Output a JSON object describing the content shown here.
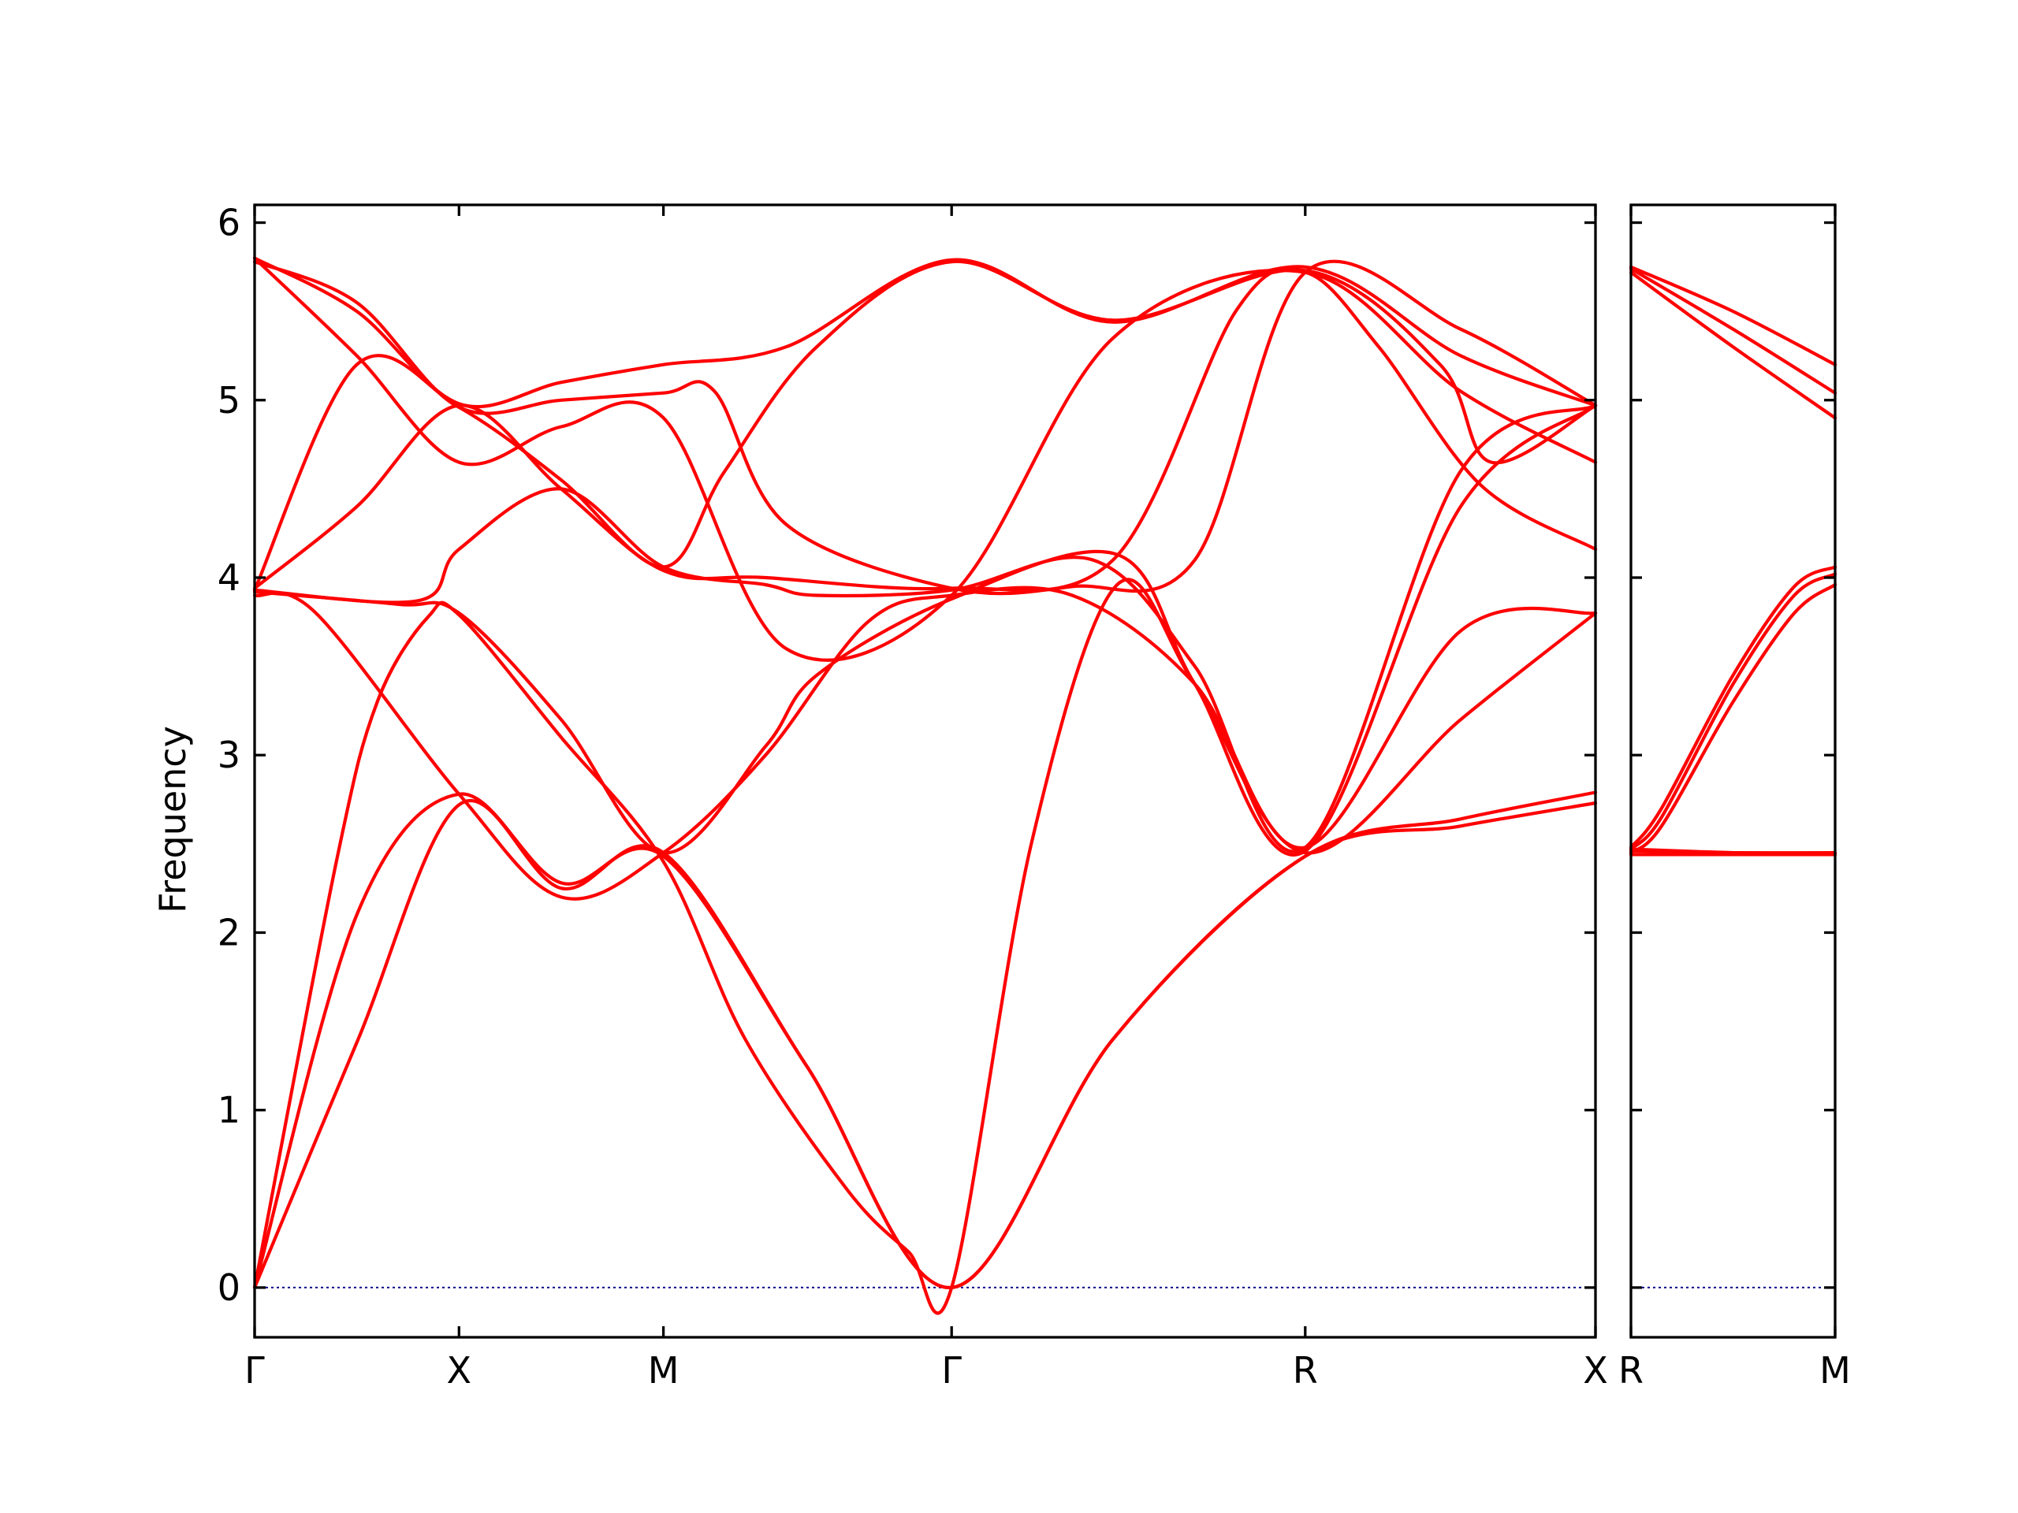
{
  "chart_data": [
    {
      "type": "line",
      "panel": "main",
      "ylabel": "Frequency",
      "ylim": [
        -0.28,
        6.1
      ],
      "yticks": [
        "0",
        "1",
        "2",
        "3",
        "4",
        "5",
        "6"
      ],
      "ytick_values": [
        0,
        1,
        2,
        3,
        4,
        5,
        6
      ],
      "xlim": [
        0,
        6.56
      ],
      "xticks": [
        {
          "label": "Γ",
          "x": 0
        },
        {
          "label": "X",
          "x": 1
        },
        {
          "label": "M",
          "x": 2
        },
        {
          "label": "Γ",
          "x": 3.41
        },
        {
          "label": "R",
          "x": 5.14
        },
        {
          "label": "X",
          "x": 6.56
        }
      ],
      "grid": false,
      "colors": {
        "bands": "#ff0000",
        "zero_line": "#00008b"
      },
      "zero_line": true,
      "series": [
        {
          "x": [
            0,
            0.5,
            1,
            1.5,
            2,
            2.7,
            3.41,
            4.2,
            5.14,
            5.9,
            6.56
          ],
          "y": [
            0,
            1.38,
            2.72,
            2.25,
            2.45,
            1.25,
            0,
            1.4,
            2.43,
            2.6,
            2.73
          ]
        },
        {
          "x": [
            0,
            0.5,
            1,
            1.5,
            2,
            2.7,
            3.41,
            4.2,
            5.14,
            5.9,
            6.56
          ],
          "y": [
            0,
            2.1,
            2.78,
            2.28,
            2.43,
            1.25,
            0,
            1.4,
            2.43,
            2.64,
            2.79
          ]
        },
        {
          "x": [
            0,
            0.4,
            0.6,
            0.85,
            1,
            1.5,
            2,
            2.4,
            2.9,
            3.2,
            3.41,
            3.8,
            4.22,
            4.6,
            5.14,
            5.9,
            6.56
          ],
          "y": [
            0,
            2.4,
            3.3,
            3.78,
            3.79,
            3.1,
            2.4,
            1.4,
            0.55,
            0.2,
            0,
            2.5,
            3.96,
            3.4,
            2.45,
            3.2,
            3.8
          ]
        },
        {
          "x": [
            0,
            0.3,
            1,
            1.5,
            2,
            2.5,
            3.0,
            3.41,
            4.0,
            4.6,
            5.14,
            5.9,
            6.56
          ],
          "y": [
            3.9,
            3.8,
            2.78,
            2.2,
            2.45,
            3.0,
            3.75,
            3.9,
            3.9,
            3.4,
            2.48,
            3.7,
            3.8
          ]
        },
        {
          "x": [
            0,
            0.7,
            1,
            1.5,
            2,
            2.5,
            2.75,
            3.41,
            4.22,
            4.6,
            5.14,
            5.9,
            6.56
          ],
          "y": [
            3.92,
            3.85,
            3.8,
            3.2,
            2.45,
            3.05,
            3.45,
            3.88,
            4.13,
            3.4,
            2.46,
            4.4,
            4.97
          ]
        },
        {
          "x": [
            0,
            0.8,
            1,
            1.5,
            2,
            2.5,
            2.75,
            3.41,
            4.1,
            4.6,
            5.14,
            5.9,
            6.56
          ],
          "y": [
            3.93,
            3.87,
            4.16,
            4.5,
            4.06,
            3.96,
            3.9,
            3.93,
            4.1,
            3.5,
            2.48,
            4.6,
            4.97
          ]
        },
        {
          "x": [
            0,
            0.5,
            1,
            1.5,
            2,
            2.5,
            3.41,
            4.2,
            4.8,
            5.14,
            5.5,
            6.0,
            6.56
          ],
          "y": [
            3.94,
            4.4,
            4.97,
            4.5,
            4.04,
            4.0,
            3.94,
            4.1,
            5.5,
            5.72,
            5.3,
            4.52,
            4.16
          ]
        },
        {
          "x": [
            0,
            0.5,
            1,
            1.5,
            2,
            2.3,
            2.75,
            3.41,
            4.2,
            5.14,
            5.8,
            6.05,
            6.56
          ],
          "y": [
            3.93,
            5.2,
            4.96,
            4.55,
            4.06,
            4.6,
            5.3,
            5.78,
            5.45,
            5.73,
            5.2,
            4.65,
            4.97
          ]
        },
        {
          "x": [
            0,
            0.5,
            1,
            1.5,
            2,
            2.6,
            3.41,
            4.2,
            5.14,
            5.9,
            6.56
          ],
          "y": [
            5.8,
            5.25,
            4.65,
            4.85,
            4.9,
            3.6,
            3.9,
            5.35,
            5.72,
            5.05,
            4.65
          ]
        },
        {
          "x": [
            0,
            0.5,
            1,
            1.5,
            2,
            2.6,
            3.41,
            4.2,
            5.14,
            5.9,
            6.56
          ],
          "y": [
            5.8,
            5.5,
            4.98,
            5.1,
            5.2,
            5.3,
            5.79,
            5.44,
            5.75,
            5.25,
            4.97
          ]
        },
        {
          "x": [
            0,
            0.5,
            1,
            1.5,
            2,
            2.25,
            2.6,
            3.41,
            4.0,
            4.6,
            5.14,
            5.9,
            6.56
          ],
          "y": [
            5.78,
            5.55,
            4.96,
            5.0,
            5.04,
            5.05,
            4.3,
            3.94,
            3.95,
            4.1,
            5.72,
            5.4,
            4.97
          ]
        }
      ]
    },
    {
      "type": "line",
      "panel": "right",
      "ylim": [
        -0.28,
        6.1
      ],
      "xlim": [
        0,
        1
      ],
      "xticks": [
        {
          "label": "R",
          "x": 0
        },
        {
          "label": "M",
          "x": 1
        }
      ],
      "grid": false,
      "colors": {
        "bands": "#ff0000",
        "zero_line": "#00008b"
      },
      "zero_line": true,
      "series": [
        {
          "x": [
            0,
            0.5,
            1
          ],
          "y": [
            2.44,
            2.44,
            2.44
          ]
        },
        {
          "x": [
            0,
            0.5,
            1
          ],
          "y": [
            2.46,
            2.45,
            2.45
          ]
        },
        {
          "x": [
            0,
            0.5,
            1
          ],
          "y": [
            2.47,
            2.45,
            2.44
          ]
        },
        {
          "x": [
            0,
            0.15,
            0.5,
            0.8,
            1
          ],
          "y": [
            2.45,
            2.6,
            3.3,
            3.8,
            3.96
          ]
        },
        {
          "x": [
            0,
            0.15,
            0.5,
            0.8,
            1
          ],
          "y": [
            2.47,
            2.65,
            3.4,
            3.9,
            4.02
          ]
        },
        {
          "x": [
            0,
            0.15,
            0.5,
            0.8,
            1
          ],
          "y": [
            2.48,
            2.7,
            3.45,
            3.95,
            4.06
          ]
        },
        {
          "x": [
            0,
            0.5,
            1
          ],
          "y": [
            5.72,
            5.3,
            4.9
          ]
        },
        {
          "x": [
            0,
            0.5,
            1
          ],
          "y": [
            5.74,
            5.4,
            5.04
          ]
        },
        {
          "x": [
            0,
            0.5,
            1
          ],
          "y": [
            5.75,
            5.5,
            5.2
          ]
        }
      ]
    }
  ]
}
